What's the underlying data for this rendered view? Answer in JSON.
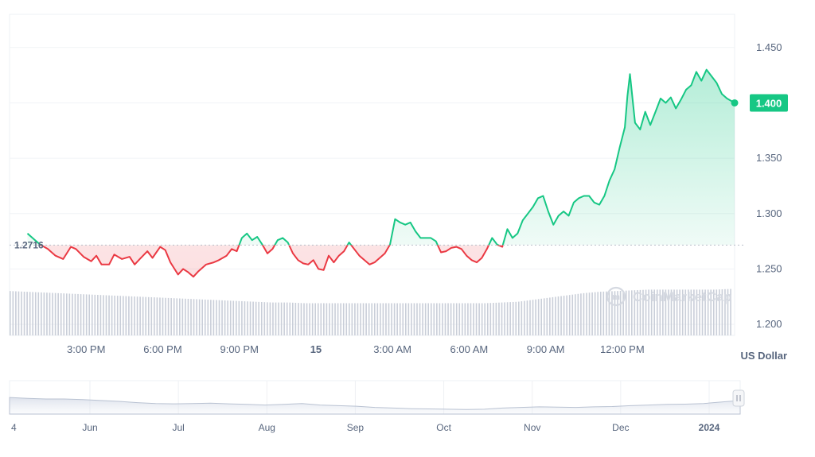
{
  "chart_data": {
    "type": "area",
    "unit_label": "US Dollar",
    "reference_label": "1.2716",
    "reference_value": 1.2716,
    "current_label": "1.400",
    "current_value": 1.4,
    "y_ticks": [
      "1.450",
      "1.400",
      "1.350",
      "1.300",
      "1.250",
      "1.200"
    ],
    "y_tick_values": [
      1.45,
      1.4,
      1.35,
      1.3,
      1.25,
      1.2
    ],
    "ylim": [
      1.19,
      1.48
    ],
    "x_ticks": [
      "3:00 PM",
      "6:00 PM",
      "9:00 PM",
      "15",
      "3:00 AM",
      "6:00 AM",
      "9:00 AM",
      "12:00 PM"
    ],
    "x_tick_hours": [
      3,
      6,
      9,
      12,
      15,
      18,
      21,
      24
    ],
    "xlim_hours": [
      0,
      28.4
    ],
    "watermark": "CoinMarketCap",
    "colors": {
      "up": "#16c784",
      "down": "#ea3943",
      "volume": "#c9ced8",
      "axis_text": "#58667e"
    },
    "series": [
      {
        "values": [
          [
            0.7,
            1.282
          ],
          [
            1.0,
            1.276
          ],
          [
            1.2,
            1.272
          ],
          [
            1.5,
            1.268
          ],
          [
            1.8,
            1.262
          ],
          [
            2.1,
            1.259
          ],
          [
            2.4,
            1.27
          ],
          [
            2.6,
            1.268
          ],
          [
            2.9,
            1.261
          ],
          [
            3.2,
            1.257
          ],
          [
            3.4,
            1.262
          ],
          [
            3.6,
            1.254
          ],
          [
            3.9,
            1.254
          ],
          [
            4.1,
            1.263
          ],
          [
            4.4,
            1.259
          ],
          [
            4.7,
            1.261
          ],
          [
            4.9,
            1.254
          ],
          [
            5.1,
            1.259
          ],
          [
            5.4,
            1.266
          ],
          [
            5.6,
            1.26
          ],
          [
            5.9,
            1.27
          ],
          [
            6.1,
            1.267
          ],
          [
            6.3,
            1.256
          ],
          [
            6.6,
            1.245
          ],
          [
            6.8,
            1.25
          ],
          [
            7.0,
            1.247
          ],
          [
            7.2,
            1.243
          ],
          [
            7.4,
            1.248
          ],
          [
            7.7,
            1.254
          ],
          [
            8.0,
            1.256
          ],
          [
            8.2,
            1.258
          ],
          [
            8.5,
            1.262
          ],
          [
            8.7,
            1.268
          ],
          [
            8.9,
            1.266
          ],
          [
            9.1,
            1.278
          ],
          [
            9.3,
            1.282
          ],
          [
            9.5,
            1.276
          ],
          [
            9.7,
            1.279
          ],
          [
            9.9,
            1.272
          ],
          [
            10.1,
            1.264
          ],
          [
            10.3,
            1.268
          ],
          [
            10.5,
            1.276
          ],
          [
            10.7,
            1.278
          ],
          [
            10.9,
            1.274
          ],
          [
            11.1,
            1.264
          ],
          [
            11.3,
            1.258
          ],
          [
            11.5,
            1.255
          ],
          [
            11.7,
            1.254
          ],
          [
            11.9,
            1.258
          ],
          [
            12.1,
            1.25
          ],
          [
            12.3,
            1.249
          ],
          [
            12.5,
            1.262
          ],
          [
            12.7,
            1.256
          ],
          [
            12.9,
            1.262
          ],
          [
            13.1,
            1.266
          ],
          [
            13.3,
            1.274
          ],
          [
            13.5,
            1.268
          ],
          [
            13.7,
            1.262
          ],
          [
            13.9,
            1.258
          ],
          [
            14.1,
            1.254
          ],
          [
            14.3,
            1.256
          ],
          [
            14.5,
            1.26
          ],
          [
            14.7,
            1.264
          ],
          [
            14.9,
            1.272
          ],
          [
            15.1,
            1.295
          ],
          [
            15.3,
            1.292
          ],
          [
            15.5,
            1.29
          ],
          [
            15.7,
            1.292
          ],
          [
            15.9,
            1.284
          ],
          [
            16.1,
            1.278
          ],
          [
            16.3,
            1.278
          ],
          [
            16.5,
            1.278
          ],
          [
            16.7,
            1.275
          ],
          [
            16.9,
            1.265
          ],
          [
            17.1,
            1.266
          ],
          [
            17.3,
            1.269
          ],
          [
            17.5,
            1.27
          ],
          [
            17.7,
            1.268
          ],
          [
            17.9,
            1.262
          ],
          [
            18.1,
            1.258
          ],
          [
            18.3,
            1.256
          ],
          [
            18.5,
            1.26
          ],
          [
            18.7,
            1.268
          ],
          [
            18.9,
            1.278
          ],
          [
            19.1,
            1.272
          ],
          [
            19.3,
            1.27
          ],
          [
            19.5,
            1.286
          ],
          [
            19.7,
            1.278
          ],
          [
            19.9,
            1.282
          ],
          [
            20.1,
            1.294
          ],
          [
            20.3,
            1.3
          ],
          [
            20.5,
            1.306
          ],
          [
            20.7,
            1.314
          ],
          [
            20.9,
            1.316
          ],
          [
            21.1,
            1.302
          ],
          [
            21.3,
            1.29
          ],
          [
            21.5,
            1.298
          ],
          [
            21.7,
            1.302
          ],
          [
            21.9,
            1.298
          ],
          [
            22.1,
            1.31
          ],
          [
            22.3,
            1.314
          ],
          [
            22.5,
            1.316
          ],
          [
            22.7,
            1.316
          ],
          [
            22.9,
            1.31
          ],
          [
            23.1,
            1.308
          ],
          [
            23.3,
            1.316
          ],
          [
            23.5,
            1.33
          ],
          [
            23.7,
            1.34
          ],
          [
            23.9,
            1.36
          ],
          [
            24.1,
            1.378
          ],
          [
            24.2,
            1.406
          ],
          [
            24.3,
            1.426
          ],
          [
            24.5,
            1.382
          ],
          [
            24.7,
            1.376
          ],
          [
            24.9,
            1.392
          ],
          [
            25.1,
            1.38
          ],
          [
            25.3,
            1.392
          ],
          [
            25.5,
            1.404
          ],
          [
            25.7,
            1.4
          ],
          [
            25.9,
            1.405
          ],
          [
            26.1,
            1.395
          ],
          [
            26.3,
            1.403
          ],
          [
            26.5,
            1.412
          ],
          [
            26.7,
            1.416
          ],
          [
            26.9,
            1.428
          ],
          [
            27.1,
            1.42
          ],
          [
            27.3,
            1.43
          ],
          [
            27.5,
            1.424
          ],
          [
            27.7,
            1.418
          ],
          [
            27.9,
            1.408
          ],
          [
            28.1,
            1.404
          ],
          [
            28.4,
            1.4
          ]
        ]
      }
    ],
    "volume": {
      "start_hour": 0,
      "end_hour": 28.4,
      "levels": [
        0.62,
        0.61,
        0.6,
        0.59,
        0.58,
        0.57,
        0.56,
        0.55,
        0.54,
        0.53,
        0.52,
        0.51,
        0.5,
        0.49,
        0.48,
        0.47,
        0.46,
        0.46,
        0.45,
        0.45,
        0.45,
        0.45,
        0.45,
        0.45,
        0.45,
        0.45,
        0.45,
        0.45,
        0.45,
        0.45,
        0.46,
        0.47,
        0.5,
        0.53,
        0.56,
        0.59,
        0.61,
        0.62,
        0.63,
        0.64,
        0.64,
        0.64,
        0.64,
        0.64,
        0.65
      ]
    },
    "navigator": {
      "x_ticks": [
        "4",
        "Jun",
        "Jul",
        "Aug",
        "Sep",
        "Oct",
        "Nov",
        "Dec",
        "2024"
      ],
      "values": [
        0.55,
        0.52,
        0.5,
        0.5,
        0.48,
        0.45,
        0.42,
        0.38,
        0.35,
        0.34,
        0.35,
        0.36,
        0.34,
        0.32,
        0.3,
        0.32,
        0.35,
        0.3,
        0.28,
        0.26,
        0.22,
        0.2,
        0.18,
        0.17,
        0.16,
        0.15,
        0.16,
        0.2,
        0.22,
        0.24,
        0.23,
        0.22,
        0.24,
        0.25,
        0.28,
        0.3,
        0.32,
        0.33,
        0.35,
        0.4,
        0.45
      ]
    }
  }
}
